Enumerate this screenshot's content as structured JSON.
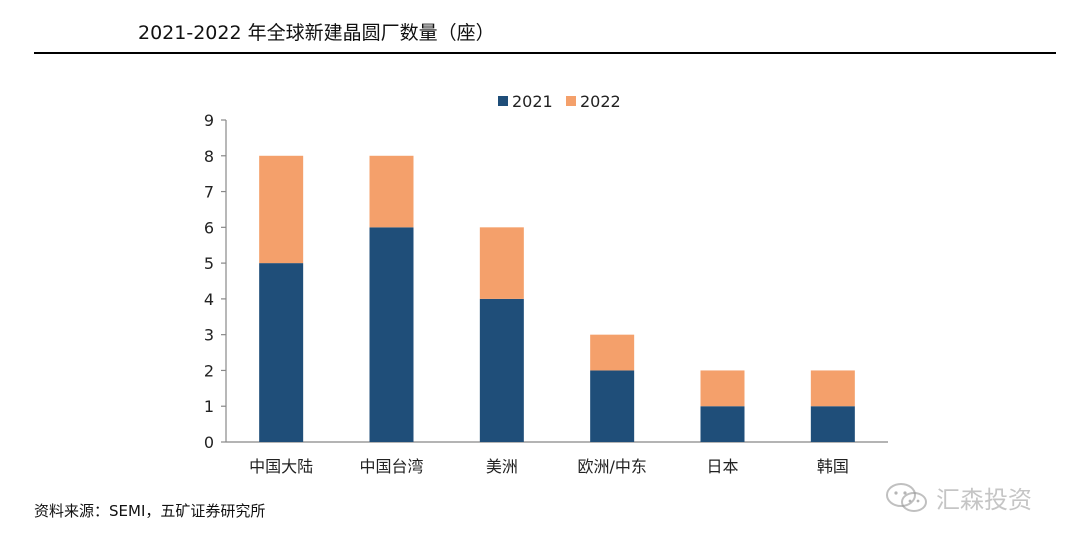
{
  "title": "2021-2022 年全球新建晶圆厂数量（座）",
  "source": "资料来源：SEMI，五矿证券研究所",
  "watermark": {
    "text": "汇森投资",
    "icon": "wechat-icon"
  },
  "colors": {
    "series_2021": "#1f4e79",
    "series_2022": "#f4a06b",
    "axis": "#888888",
    "rule": "#000000"
  },
  "chart_data": {
    "type": "bar",
    "stacked": true,
    "title": "",
    "xlabel": "",
    "ylabel": "",
    "categories": [
      "中国大陆",
      "中国台湾",
      "美洲",
      "欧洲/中东",
      "日本",
      "韩国"
    ],
    "series": [
      {
        "name": "2021",
        "values": [
          5,
          6,
          4,
          2,
          1,
          1
        ]
      },
      {
        "name": "2022",
        "values": [
          3,
          2,
          2,
          1,
          1,
          1
        ]
      }
    ],
    "ylim": [
      0,
      9
    ],
    "yticks": [
      0,
      1,
      2,
      3,
      4,
      5,
      6,
      7,
      8,
      9
    ],
    "grid": false,
    "legend_position": "top-center"
  }
}
